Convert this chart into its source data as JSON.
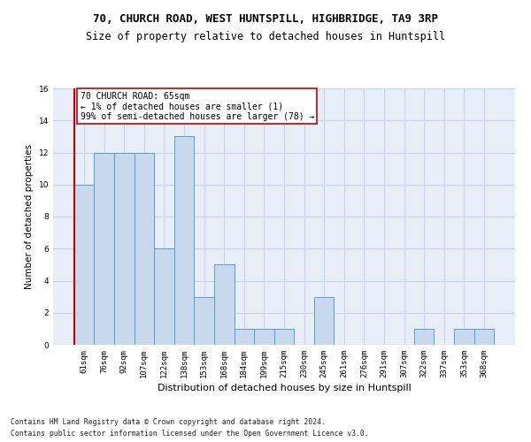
{
  "title": "70, CHURCH ROAD, WEST HUNTSPILL, HIGHBRIDGE, TA9 3RP",
  "subtitle": "Size of property relative to detached houses in Huntspill",
  "xlabel": "Distribution of detached houses by size in Huntspill",
  "ylabel": "Number of detached properties",
  "footer_line1": "Contains HM Land Registry data © Crown copyright and database right 2024.",
  "footer_line2": "Contains public sector information licensed under the Open Government Licence v3.0.",
  "bin_labels": [
    "61sqm",
    "76sqm",
    "92sqm",
    "107sqm",
    "122sqm",
    "138sqm",
    "153sqm",
    "168sqm",
    "184sqm",
    "199sqm",
    "215sqm",
    "230sqm",
    "245sqm",
    "261sqm",
    "276sqm",
    "291sqm",
    "307sqm",
    "322sqm",
    "337sqm",
    "353sqm",
    "368sqm"
  ],
  "values": [
    10,
    12,
    12,
    12,
    6,
    13,
    3,
    5,
    1,
    1,
    1,
    0,
    3,
    0,
    0,
    0,
    0,
    1,
    0,
    1,
    1
  ],
  "bar_color": "#c9d9ed",
  "bar_edge_color": "#5b9bd5",
  "subject_line_color": "#cc0000",
  "annotation_text": "70 CHURCH ROAD: 65sqm\n← 1% of detached houses are smaller (1)\n99% of semi-detached houses are larger (78) →",
  "annotation_box_color": "#ffffff",
  "annotation_box_edge": "#cc0000",
  "ylim": [
    0,
    16
  ],
  "yticks": [
    0,
    2,
    4,
    6,
    8,
    10,
    12,
    14,
    16
  ],
  "grid_color": "#c8d4e8",
  "background_color": "#e8eef8",
  "title_fontsize": 9,
  "subtitle_fontsize": 8.5,
  "axis_ylabel_fontsize": 7.5,
  "axis_xlabel_fontsize": 8,
  "tick_fontsize": 6.5,
  "footer_fontsize": 5.8,
  "annotation_fontsize": 7
}
